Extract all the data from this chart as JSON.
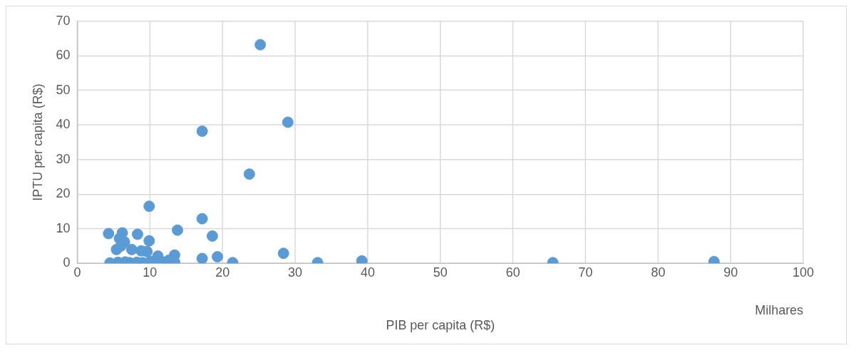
{
  "chart_data": {
    "type": "scatter",
    "xlabel": "PIB per capita (R$)",
    "ylabel": "IPTU per capita (R$)",
    "annotations": [
      "Milhares"
    ],
    "series": [
      {
        "color": "#5b9bd5",
        "x": [
          25.2,
          29.0,
          17.2,
          23.7,
          9.9,
          17.2,
          13.8,
          18.6,
          4.3,
          6.2,
          8.3,
          9.9,
          28.4,
          17.2,
          19.3,
          21.4,
          33.1,
          39.2,
          65.5,
          87.7,
          5.8,
          6.5,
          7.5,
          5.4,
          6.0,
          9.6,
          8.8,
          11.1,
          13.4,
          13.4,
          10.1,
          11.6,
          12.6,
          5.6,
          6.6,
          7.2,
          8.2,
          9.0,
          4.5
        ],
        "values": [
          63.2,
          40.8,
          38.2,
          25.8,
          16.5,
          12.9,
          9.6,
          7.9,
          8.6,
          8.8,
          8.4,
          6.5,
          2.9,
          1.4,
          1.9,
          0.2,
          0.2,
          0.7,
          0.2,
          0.5,
          7.2,
          6.2,
          4.0,
          4.0,
          5.0,
          3.4,
          3.6,
          2.1,
          2.4,
          0.4,
          0.6,
          0.5,
          0.9,
          0.3,
          0.4,
          0.2,
          0.3,
          0.2,
          0.1
        ]
      }
    ],
    "xlim": [
      0,
      100
    ],
    "xticks": [
      0,
      10,
      20,
      30,
      40,
      50,
      60,
      70,
      80,
      90,
      100
    ],
    "ylim": [
      0,
      70
    ],
    "yticks": [
      0,
      10,
      20,
      30,
      40,
      50,
      60,
      70
    ],
    "grid": true,
    "legend": false,
    "marker": "circle"
  }
}
